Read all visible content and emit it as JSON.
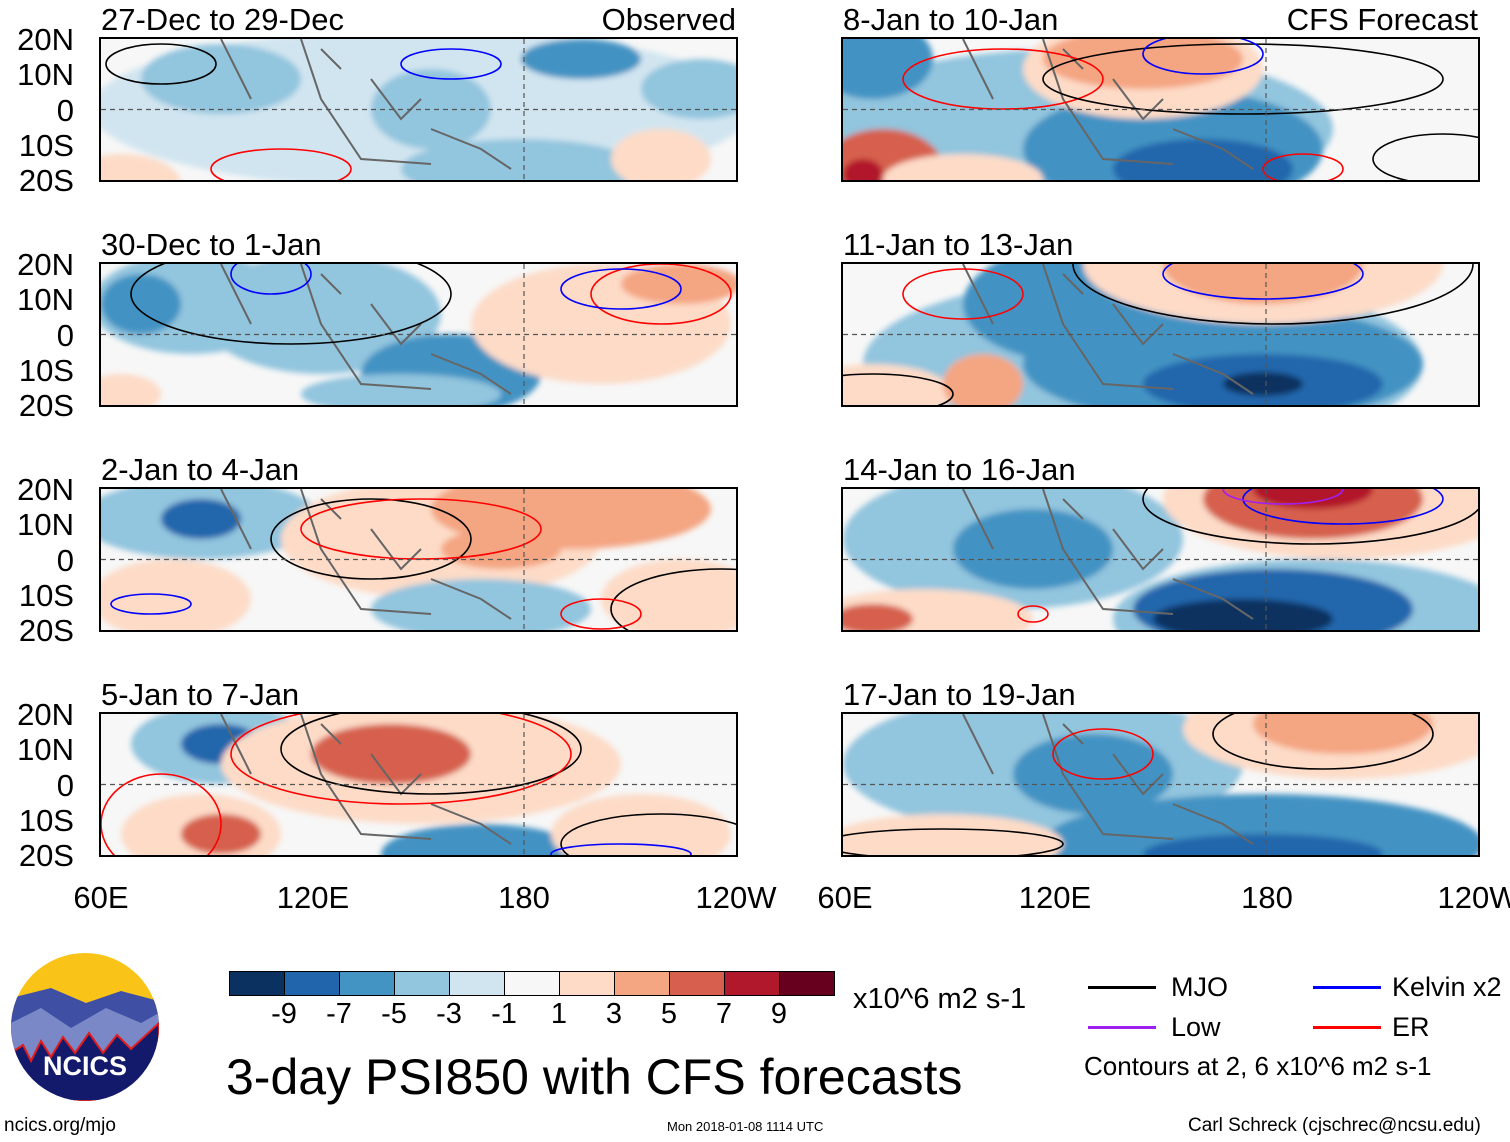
{
  "chart_data": {
    "type": "heatmap",
    "title": "3-day PSI850 with CFS forecasts",
    "variable": "PSI850 anomaly",
    "units": "x10^6 m2 s-1",
    "lat_ticks": [
      "20N",
      "10N",
      "0",
      "10S",
      "20S"
    ],
    "lon_ticks": [
      "60E",
      "120E",
      "180",
      "120W"
    ],
    "panels": [
      {
        "title": "27-Dec to 29-Dec",
        "label": "Observed"
      },
      {
        "title": "8-Jan to 10-Jan",
        "label": "CFS Forecast"
      },
      {
        "title": "30-Dec to 1-Jan",
        "label": ""
      },
      {
        "title": "11-Jan to 13-Jan",
        "label": ""
      },
      {
        "title": "2-Jan to 4-Jan",
        "label": ""
      },
      {
        "title": "14-Jan to 16-Jan",
        "label": ""
      },
      {
        "title": "5-Jan to 7-Jan",
        "label": ""
      },
      {
        "title": "17-Jan to 19-Jan",
        "label": ""
      }
    ],
    "colorbar": {
      "labels": [
        "-9",
        "-7",
        "-5",
        "-3",
        "-1",
        "1",
        "3",
        "5",
        "7",
        "9"
      ],
      "colors": [
        "#0b3161",
        "#2166ac",
        "#4393c3",
        "#92c5de",
        "#d1e5f0",
        "#f7f7f7",
        "#fddbc7",
        "#f4a582",
        "#d6604d",
        "#b2182b",
        "#67001f"
      ]
    },
    "legend": [
      {
        "name": "MJO",
        "color": "#000000"
      },
      {
        "name": "Kelvin x2",
        "color": "#0000ff"
      },
      {
        "name": "Low",
        "color": "#a020f0"
      },
      {
        "name": "ER",
        "color": "#ff0000"
      }
    ],
    "contour_note": "Contours at 2, 6 x10^6 m2 s-1"
  },
  "footer": {
    "logo": "NCICS",
    "url": "ncics.org/mjo",
    "timestamp": "Mon 2018-01-08 1114 UTC",
    "author": "Carl Schreck (cjschrec@ncsu.edu)"
  }
}
